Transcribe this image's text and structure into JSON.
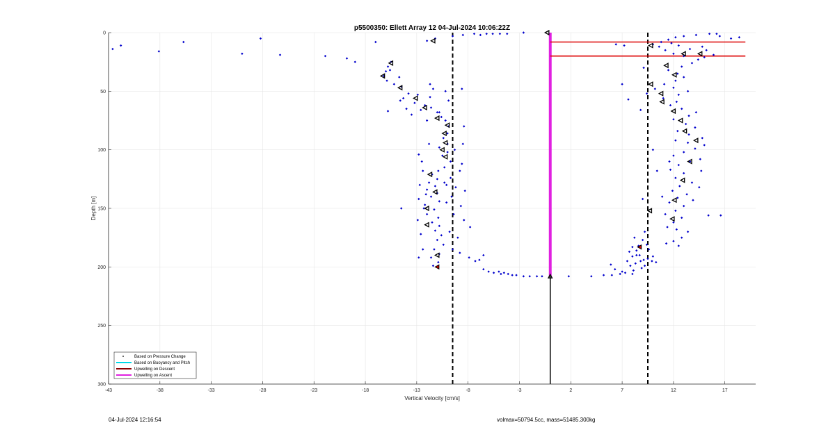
{
  "chart_data": {
    "type": "scatter",
    "title": "p5500350: Ellett Array 12 04-Jul-2024 10:06:22Z",
    "xlabel": "Vertical Velocity [cm/s]",
    "ylabel": "Depth [m]",
    "xlim": [
      -43,
      20
    ],
    "ylim": [
      0,
      300
    ],
    "y_reversed": true,
    "grid": true,
    "xticks": [
      -43,
      -38,
      -33,
      -28,
      -23,
      -18,
      -13,
      -8,
      -3,
      2,
      7,
      12,
      17
    ],
    "yticks": [
      0,
      50,
      100,
      150,
      200,
      250,
      300
    ],
    "legend_location": "bottom-left",
    "legend": [
      {
        "label": "Based on Pressure Change",
        "style": "dot",
        "color": "#000000"
      },
      {
        "label": "Based on Buoyancy and Pitch",
        "style": "line",
        "color": "#00d8e8"
      },
      {
        "label": "Upwelling on Descent",
        "style": "line",
        "color": "#8b0000"
      },
      {
        "label": "Upwelling on Ascent",
        "style": "line",
        "color": "#e020e0"
      }
    ],
    "colors": {
      "points": "#0000cc",
      "markers": "#000000",
      "reference_lines": "#000000",
      "horizontal_lines": "#dd0000",
      "ascent_line": "#e020e0"
    },
    "reference_lines_x": [
      -9.5,
      9.5
    ],
    "zero_line": {
      "x": 0,
      "y_range": [
        0,
        300
      ]
    },
    "ascent_line": {
      "x": 0,
      "y_range": [
        0,
        208
      ]
    },
    "horizontal_lines": [
      {
        "y": 8,
        "x_range": [
          0,
          19
        ]
      },
      {
        "y": 20,
        "x_range": [
          0,
          19
        ]
      }
    ],
    "descent_points": [
      [
        -42.6,
        14
      ],
      [
        -41.8,
        11
      ],
      [
        -38.1,
        16
      ],
      [
        -35.7,
        8
      ],
      [
        -30.0,
        18
      ],
      [
        -28.2,
        5
      ],
      [
        -26.3,
        19
      ],
      [
        -21.9,
        20
      ],
      [
        -19.8,
        22
      ],
      [
        -19.0,
        25
      ],
      [
        -17.0,
        8
      ],
      [
        -15.5,
        25
      ],
      [
        -15.8,
        29
      ],
      [
        -16.0,
        33
      ],
      [
        -16.2,
        37
      ],
      [
        -15.9,
        41
      ],
      [
        -15.2,
        44
      ],
      [
        -15.6,
        32
      ],
      [
        -14.7,
        38
      ],
      [
        -14.5,
        46
      ],
      [
        -13.8,
        52
      ],
      [
        -14.3,
        56
      ],
      [
        -12.9,
        53
      ],
      [
        -13.2,
        60
      ],
      [
        -12.2,
        62
      ],
      [
        -11.6,
        64
      ],
      [
        -11.7,
        55
      ],
      [
        -11.0,
        68
      ],
      [
        -10.6,
        72
      ],
      [
        -11.4,
        48
      ],
      [
        -10.2,
        50
      ],
      [
        -9.9,
        58
      ],
      [
        -10.2,
        75
      ],
      [
        -9.9,
        80
      ],
      [
        -10.0,
        86
      ],
      [
        -10.4,
        90
      ],
      [
        -10.0,
        95
      ],
      [
        -10.8,
        98
      ],
      [
        -10.0,
        102
      ],
      [
        -10.5,
        105
      ],
      [
        -9.7,
        110
      ],
      [
        -10.3,
        115
      ],
      [
        -10.9,
        118
      ],
      [
        -11.5,
        121
      ],
      [
        -11.0,
        125
      ],
      [
        -11.8,
        128
      ],
      [
        -11.2,
        131
      ],
      [
        -12.0,
        134
      ],
      [
        -11.0,
        137
      ],
      [
        -11.6,
        140
      ],
      [
        -10.8,
        144
      ],
      [
        -12.2,
        147
      ],
      [
        -11.3,
        151
      ],
      [
        -12.0,
        155
      ],
      [
        -10.9,
        158
      ],
      [
        -11.5,
        162
      ],
      [
        -10.8,
        165
      ],
      [
        -11.2,
        169
      ],
      [
        -10.6,
        173
      ],
      [
        -11.0,
        177
      ],
      [
        -10.4,
        181
      ],
      [
        -11.3,
        185
      ],
      [
        -10.8,
        189
      ],
      [
        -11.6,
        192
      ],
      [
        -10.9,
        196
      ],
      [
        -11.4,
        199
      ],
      [
        -12.8,
        192
      ],
      [
        -12.4,
        185
      ],
      [
        -12.6,
        172
      ],
      [
        -12.9,
        160
      ],
      [
        -12.3,
        150
      ],
      [
        -12.8,
        142
      ],
      [
        -12.7,
        130
      ],
      [
        -12.4,
        118
      ],
      [
        -12.5,
        110
      ],
      [
        -12.8,
        104
      ],
      [
        -8.4,
        80
      ],
      [
        -8.5,
        95
      ],
      [
        -8.6,
        112
      ],
      [
        -8.8,
        118
      ],
      [
        -8.3,
        135
      ],
      [
        -8.7,
        148
      ],
      [
        -8.4,
        160
      ],
      [
        -7.8,
        166
      ],
      [
        -9.0,
        175
      ],
      [
        -8.8,
        188
      ],
      [
        -7.9,
        192
      ],
      [
        -9.2,
        132
      ],
      [
        -9.3,
        100
      ],
      [
        -9.6,
        140
      ],
      [
        -9.4,
        155
      ],
      [
        -9.8,
        170
      ],
      [
        -9.5,
        185
      ],
      [
        -10.1,
        130
      ],
      [
        -10.1,
        145
      ],
      [
        -9.7,
        124
      ],
      [
        -10.3,
        128
      ],
      [
        -11.7,
        44
      ],
      [
        -8.6,
        48
      ],
      [
        -10.8,
        68
      ],
      [
        -12.0,
        75
      ],
      [
        -11.8,
        95
      ],
      [
        -12.1,
        138
      ],
      [
        -14.5,
        150
      ],
      [
        -6.5,
        190
      ],
      [
        -6.9,
        194
      ],
      [
        -7.3,
        195
      ],
      [
        -6.5,
        202
      ],
      [
        -6.0,
        204
      ],
      [
        -5.5,
        205
      ],
      [
        -5.0,
        204
      ],
      [
        -4.8,
        206
      ],
      [
        -4.5,
        205
      ],
      [
        -4.1,
        206
      ],
      [
        -3.7,
        207
      ],
      [
        -3.3,
        207
      ],
      [
        -2.6,
        208
      ],
      [
        -2.0,
        208
      ],
      [
        -1.3,
        208
      ],
      [
        -0.8,
        208
      ],
      [
        -12.0,
        7
      ],
      [
        -11.2,
        5
      ],
      [
        -9.5,
        3
      ],
      [
        -8.5,
        2
      ],
      [
        -7.4,
        1
      ],
      [
        -6.8,
        2
      ],
      [
        -6.2,
        1
      ],
      [
        -5.6,
        1
      ],
      [
        -4.9,
        1
      ],
      [
        -4.2,
        1
      ],
      [
        -2.6,
        0
      ],
      [
        -15.8,
        67
      ],
      [
        -14.0,
        65
      ],
      [
        -12.6,
        66
      ],
      [
        -13.5,
        70
      ],
      [
        -14.6,
        58
      ]
    ],
    "ascent_points": [
      [
        1.8,
        208
      ],
      [
        4.0,
        208
      ],
      [
        5.2,
        207
      ],
      [
        6.0,
        207
      ],
      [
        6.8,
        206
      ],
      [
        7.3,
        205
      ],
      [
        8.1,
        203
      ],
      [
        7.8,
        199
      ],
      [
        7.5,
        195
      ],
      [
        8.0,
        191
      ],
      [
        7.7,
        187
      ],
      [
        8.4,
        186
      ],
      [
        8.7,
        190
      ],
      [
        9.1,
        194
      ],
      [
        8.3,
        197
      ],
      [
        9.5,
        193
      ],
      [
        9.9,
        195
      ],
      [
        8.9,
        201
      ],
      [
        8.6,
        182
      ],
      [
        9.4,
        181
      ],
      [
        8.0,
        183
      ],
      [
        9.0,
        177
      ],
      [
        9.6,
        185
      ],
      [
        8.4,
        190
      ],
      [
        10.0,
        191
      ],
      [
        9.2,
        199
      ],
      [
        10.3,
        196
      ],
      [
        8.0,
        206
      ],
      [
        7.0,
        204
      ],
      [
        6.3,
        202
      ],
      [
        8.8,
        195
      ],
      [
        5.9,
        198
      ],
      [
        9.2,
        170
      ],
      [
        8.2,
        175
      ],
      [
        11.3,
        180
      ],
      [
        12.0,
        178
      ],
      [
        12.5,
        182
      ],
      [
        12.8,
        175
      ],
      [
        13.4,
        170
      ],
      [
        12.3,
        168
      ],
      [
        11.4,
        166
      ],
      [
        12.0,
        162
      ],
      [
        12.8,
        158
      ],
      [
        11.2,
        155
      ],
      [
        12.2,
        152
      ],
      [
        13.0,
        148
      ],
      [
        11.6,
        145
      ],
      [
        12.4,
        141
      ],
      [
        13.3,
        138
      ],
      [
        11.9,
        135
      ],
      [
        12.6,
        131
      ],
      [
        13.8,
        128
      ],
      [
        12.2,
        124
      ],
      [
        13.0,
        120
      ],
      [
        11.7,
        117
      ],
      [
        12.5,
        113
      ],
      [
        13.6,
        110
      ],
      [
        14.6,
        108
      ],
      [
        12.0,
        105
      ],
      [
        13.0,
        102
      ],
      [
        14.1,
        99
      ],
      [
        15.0,
        96
      ],
      [
        13.4,
        94
      ],
      [
        12.2,
        92
      ],
      [
        14.8,
        90
      ],
      [
        13.5,
        87
      ],
      [
        12.4,
        84
      ],
      [
        14.1,
        81
      ],
      [
        13.2,
        78
      ],
      [
        12.0,
        74
      ],
      [
        13.5,
        71
      ],
      [
        14.2,
        68
      ],
      [
        12.8,
        65
      ],
      [
        11.7,
        62
      ],
      [
        12.3,
        59
      ],
      [
        11.0,
        56
      ],
      [
        12.5,
        53
      ],
      [
        13.4,
        50
      ],
      [
        12.0,
        47
      ],
      [
        11.1,
        44
      ],
      [
        12.2,
        41
      ],
      [
        13.0,
        38
      ],
      [
        12.4,
        35
      ],
      [
        11.5,
        32
      ],
      [
        12.8,
        29
      ],
      [
        13.8,
        26
      ],
      [
        14.4,
        23
      ],
      [
        13.0,
        20
      ],
      [
        12.0,
        18
      ],
      [
        11.2,
        15
      ],
      [
        10.6,
        12
      ],
      [
        10.0,
        10
      ],
      [
        10.8,
        8
      ],
      [
        11.5,
        6
      ],
      [
        12.2,
        4
      ],
      [
        13.0,
        3
      ],
      [
        14.2,
        2
      ],
      [
        15.5,
        1
      ],
      [
        16.2,
        1
      ],
      [
        16.5,
        3
      ],
      [
        17.6,
        5
      ],
      [
        18.4,
        4
      ],
      [
        15.9,
        19
      ],
      [
        15.0,
        21
      ],
      [
        15.2,
        15
      ],
      [
        14.8,
        12
      ],
      [
        13.6,
        14
      ],
      [
        12.5,
        11
      ],
      [
        11.8,
        9
      ],
      [
        16.6,
        156
      ],
      [
        15.4,
        156
      ],
      [
        10.4,
        118
      ],
      [
        10.9,
        140
      ],
      [
        13.9,
        143
      ],
      [
        14.5,
        132
      ],
      [
        9.1,
        30
      ],
      [
        9.4,
        52
      ],
      [
        10.2,
        48
      ],
      [
        8.8,
        66
      ],
      [
        7.0,
        44
      ],
      [
        7.6,
        57
      ],
      [
        7.2,
        11
      ],
      [
        6.4,
        10
      ],
      [
        9.0,
        142
      ],
      [
        10.0,
        100
      ],
      [
        14.7,
        118
      ],
      [
        11.6,
        110
      ]
    ],
    "triangle_markers": [
      [
        -11.4,
        7
      ],
      [
        -15.5,
        26
      ],
      [
        -16.3,
        37
      ],
      [
        -14.6,
        47
      ],
      [
        -13.1,
        56
      ],
      [
        -12.2,
        64
      ],
      [
        -11.0,
        73
      ],
      [
        -10.0,
        79
      ],
      [
        -10.3,
        86
      ],
      [
        -10.2,
        94
      ],
      [
        -10.5,
        100
      ],
      [
        -10.2,
        106
      ],
      [
        -11.7,
        121
      ],
      [
        -11.2,
        136
      ],
      [
        -12.0,
        150
      ],
      [
        -12.0,
        164
      ],
      [
        -11.0,
        190
      ],
      [
        -0.3,
        0
      ],
      [
        9.8,
        11
      ],
      [
        13.0,
        18
      ],
      [
        11.3,
        28
      ],
      [
        12.1,
        36
      ],
      [
        14.6,
        18
      ],
      [
        9.8,
        44
      ],
      [
        10.8,
        52
      ],
      [
        10.9,
        59
      ],
      [
        12.0,
        67
      ],
      [
        12.7,
        75
      ],
      [
        13.1,
        84
      ],
      [
        14.2,
        92
      ],
      [
        13.6,
        110
      ],
      [
        12.9,
        126
      ],
      [
        12.1,
        143
      ],
      [
        11.9,
        159
      ],
      [
        9.7,
        152
      ]
    ],
    "red_markers": [
      [
        -11.0,
        200
      ],
      [
        8.7,
        183
      ]
    ],
    "ascent_end_marker": [
      0,
      208
    ]
  },
  "footer": {
    "left": "04-Jul-2024 12:16:54",
    "right": "volmax=50794.5cc, mass=51485.300kg"
  }
}
